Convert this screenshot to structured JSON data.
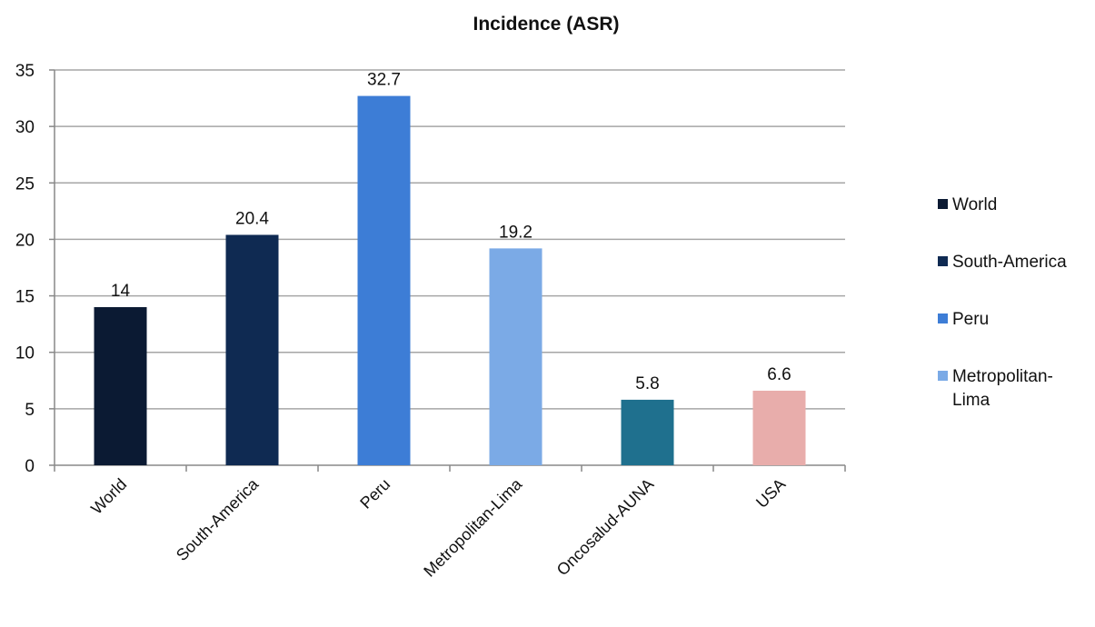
{
  "chart_data": {
    "type": "bar",
    "title": "Incidence (ASR)",
    "xlabel": "",
    "ylabel": "",
    "categories": [
      "World",
      "South-America",
      "Peru",
      "Metropolitan-Lima",
      "Oncosalud-AUNA",
      "USA"
    ],
    "values": [
      14,
      20.4,
      32.7,
      19.2,
      5.8,
      6.6
    ],
    "data_labels": [
      "14",
      "20.4",
      "32.7",
      "19.2",
      "5.8",
      "6.6"
    ],
    "colors": [
      "#0b1a33",
      "#0f2a52",
      "#3d7dd6",
      "#7baae6",
      "#1f708e",
      "#e8adab"
    ],
    "ylim": [
      0,
      35
    ],
    "yticks": [
      0,
      5,
      10,
      15,
      20,
      25,
      30,
      35
    ],
    "grid": true,
    "legend": {
      "placement": "right",
      "entries": [
        {
          "label_lines": [
            "World"
          ],
          "color": "#0b1a33"
        },
        {
          "label_lines": [
            "South-America"
          ],
          "color": "#0f2a52"
        },
        {
          "label_lines": [
            "Peru"
          ],
          "color": "#3d7dd6"
        },
        {
          "label_lines": [
            "Metropolitan-",
            "Lima"
          ],
          "color": "#7baae6"
        }
      ]
    }
  }
}
